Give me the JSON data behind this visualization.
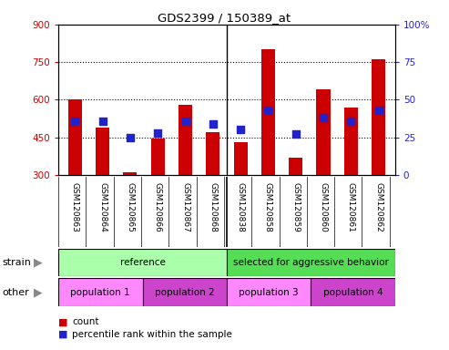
{
  "title": "GDS2399 / 150389_at",
  "samples": [
    "GSM120863",
    "GSM120864",
    "GSM120865",
    "GSM120866",
    "GSM120867",
    "GSM120868",
    "GSM120838",
    "GSM120858",
    "GSM120859",
    "GSM120860",
    "GSM120861",
    "GSM120862"
  ],
  "count_values": [
    600,
    490,
    310,
    445,
    580,
    470,
    432,
    800,
    370,
    640,
    570,
    760
  ],
  "percentile_values": [
    36,
    36,
    25,
    28,
    36,
    34,
    30,
    43,
    27,
    38,
    36,
    43
  ],
  "count_baseline": 300,
  "ylim_left": [
    300,
    900
  ],
  "ylim_right": [
    0,
    100
  ],
  "yticks_left": [
    300,
    450,
    600,
    750,
    900
  ],
  "yticks_right": [
    0,
    25,
    50,
    75,
    100
  ],
  "bar_color": "#cc0000",
  "dot_color": "#2222cc",
  "bar_width": 0.5,
  "dot_size": 35,
  "strain_groups": [
    {
      "label": "reference",
      "start": 0,
      "end": 6,
      "color": "#aaffaa"
    },
    {
      "label": "selected for aggressive behavior",
      "start": 6,
      "end": 12,
      "color": "#55dd55"
    }
  ],
  "other_groups": [
    {
      "label": "population 1",
      "start": 0,
      "end": 3,
      "color": "#ff88ff"
    },
    {
      "label": "population 2",
      "start": 3,
      "end": 6,
      "color": "#cc44cc"
    },
    {
      "label": "population 3",
      "start": 6,
      "end": 9,
      "color": "#ff88ff"
    },
    {
      "label": "population 4",
      "start": 9,
      "end": 12,
      "color": "#cc44cc"
    }
  ],
  "tick_bg_color": "#c8c8c8",
  "divider_col": 5.5,
  "left_axis_color": "#cc0000",
  "right_axis_color": "#2222cc",
  "legend_count_label": "count",
  "legend_pct_label": "percentile rank within the sample",
  "strain_label": "strain",
  "other_label": "other"
}
